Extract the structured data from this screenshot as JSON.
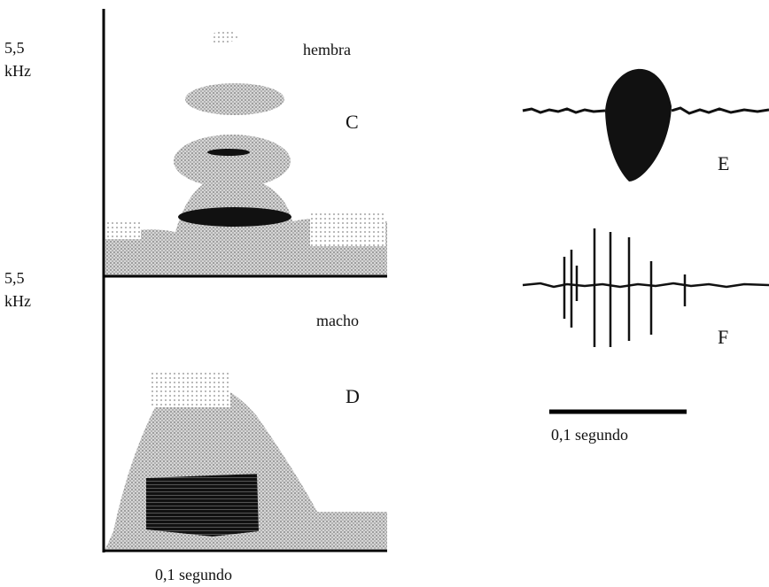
{
  "left_panel": {
    "top": {
      "y_max": "5,5",
      "y_unit": "kHz",
      "sex": "hembra",
      "label": "C"
    },
    "bottom": {
      "y_max": "5,5",
      "y_unit": "kHz",
      "sex": "macho",
      "label": "D"
    },
    "time_scale": "0,1 segundo"
  },
  "right_panel": {
    "top_label": "E",
    "bottom_label": "F",
    "time_scale": "0,1 segundo"
  }
}
